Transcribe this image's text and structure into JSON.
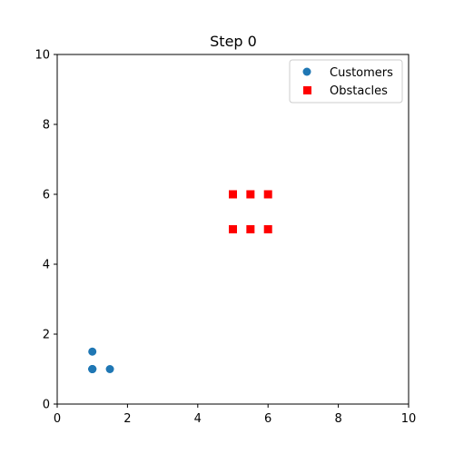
{
  "chart_data": {
    "type": "scatter",
    "title": "Step 0",
    "xlabel": "",
    "ylabel": "",
    "xlim": [
      0,
      10
    ],
    "ylim": [
      0,
      10
    ],
    "xticks": [
      0,
      2,
      4,
      6,
      8,
      10
    ],
    "yticks": [
      0,
      2,
      4,
      6,
      8,
      10
    ],
    "xtick_labels": [
      "0",
      "2",
      "4",
      "6",
      "8",
      "10"
    ],
    "ytick_labels": [
      "0",
      "2",
      "4",
      "6",
      "8",
      "10"
    ],
    "grid": false,
    "legend_position": "top-right",
    "series": [
      {
        "name": "Customers",
        "marker": "circle",
        "color": "#1f77b4",
        "x": [
          1.0,
          1.0,
          1.0,
          1.0,
          1.5,
          1.0
        ],
        "y": [
          1.5,
          1.0,
          1.0,
          1.0,
          1.0,
          1.0
        ]
      },
      {
        "name": "Obstacles",
        "marker": "square",
        "color": "#ff0000",
        "x": [
          5.0,
          5.5,
          6.0,
          5.0,
          5.5,
          6.0
        ],
        "y": [
          6.0,
          6.0,
          6.0,
          5.0,
          5.0,
          5.0
        ]
      }
    ]
  }
}
